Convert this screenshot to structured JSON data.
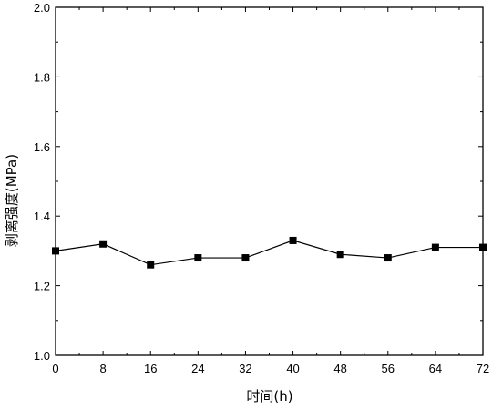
{
  "chart_data": {
    "type": "line",
    "title": "",
    "xlabel": "时间(h)",
    "ylabel": "剥离强度(MPa)",
    "x": [
      0,
      8,
      16,
      24,
      32,
      40,
      48,
      56,
      64,
      72
    ],
    "xlim": [
      0,
      72
    ],
    "ylim": [
      1.0,
      2.0
    ],
    "xticks": [
      0,
      8,
      16,
      24,
      32,
      40,
      48,
      56,
      64,
      72
    ],
    "yticks": [
      1.0,
      1.2,
      1.4,
      1.6,
      1.8,
      2.0
    ],
    "xtick_labels": [
      "0",
      "8",
      "16",
      "24",
      "32",
      "40",
      "48",
      "56",
      "64",
      "72"
    ],
    "ytick_labels": [
      "1.0",
      "1.2",
      "1.4",
      "1.6",
      "1.8",
      "2.0"
    ],
    "series": [
      {
        "values": [
          1.3,
          1.32,
          1.26,
          1.28,
          1.28,
          1.33,
          1.29,
          1.28,
          1.31,
          1.31
        ],
        "marker": "square",
        "color": "#000000"
      }
    ],
    "grid": false,
    "legend": "none"
  }
}
